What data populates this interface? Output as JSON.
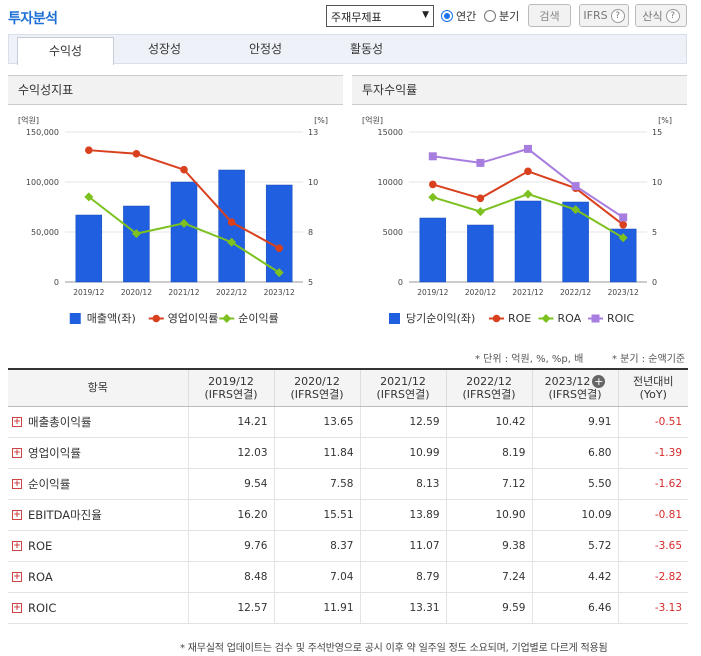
{
  "header": {
    "title": "투자분석",
    "select_value": "주재무제표",
    "radio_annual": "연간",
    "radio_quarter": "분기",
    "search_button": "검색",
    "ifrs_button": "IFRS",
    "formula_button": "산식"
  },
  "tabs": [
    "수익성",
    "성장성",
    "안정성",
    "활동성"
  ],
  "left_chart": {
    "title": "수익성지표",
    "left_unit": "[억원]",
    "right_unit": "[%]",
    "left_ticks": [
      "150,000",
      "100,000",
      "50,000",
      "0"
    ],
    "right_ticks": [
      "13",
      "10",
      "8",
      "5"
    ],
    "legend": [
      "매출액(좌)",
      "영업이익률",
      "순이익률"
    ]
  },
  "right_chart": {
    "title": "투자수익률",
    "left_unit": "[억원]",
    "right_unit": "[%]",
    "left_ticks": [
      "15000",
      "10000",
      "5000",
      "0"
    ],
    "right_ticks": [
      "15",
      "10",
      "5",
      "0"
    ],
    "legend": [
      "당기순이익(좌)",
      "ROE",
      "ROA",
      "ROIC"
    ]
  },
  "chart_data": [
    {
      "type": "bar+line",
      "title": "수익성지표",
      "categories": [
        "2019/12",
        "2020/12",
        "2021/12",
        "2022/12",
        "2023/12"
      ],
      "ylim_left": [
        0,
        150000
      ],
      "ylim_right": [
        5,
        13
      ],
      "series": [
        {
          "name": "매출액(좌)",
          "kind": "bar",
          "axis": "left",
          "color": "#1f5fe0",
          "values": [
            67000,
            76000,
            100000,
            112000,
            97000
          ]
        },
        {
          "name": "영업이익률",
          "kind": "line",
          "axis": "right",
          "color": "#d9411e",
          "values": [
            12.03,
            11.84,
            10.99,
            8.19,
            6.8
          ]
        },
        {
          "name": "순이익률",
          "kind": "line",
          "axis": "right",
          "color": "#7cc11f",
          "values": [
            9.54,
            7.58,
            8.13,
            7.12,
            5.5
          ]
        }
      ]
    },
    {
      "type": "bar+line",
      "title": "투자수익률",
      "categories": [
        "2019/12",
        "2020/12",
        "2021/12",
        "2022/12",
        "2023/12"
      ],
      "ylim_left": [
        0,
        15000
      ],
      "ylim_right": [
        0,
        15
      ],
      "series": [
        {
          "name": "당기순이익(좌)",
          "kind": "bar",
          "axis": "left",
          "color": "#1f5fe0",
          "values": [
            6400,
            5700,
            8100,
            8000,
            5300
          ]
        },
        {
          "name": "ROE",
          "kind": "line",
          "axis": "right",
          "color": "#d9411e",
          "values": [
            9.76,
            8.37,
            11.07,
            9.38,
            5.72
          ]
        },
        {
          "name": "ROA",
          "kind": "line",
          "axis": "right",
          "color": "#7cc11f",
          "values": [
            8.48,
            7.04,
            8.79,
            7.24,
            4.42
          ]
        },
        {
          "name": "ROIC",
          "kind": "line",
          "axis": "right",
          "color": "#a87de0",
          "values": [
            12.57,
            11.91,
            13.31,
            9.59,
            6.46
          ]
        }
      ]
    }
  ],
  "notes": {
    "unit": "* 단위 : 억원, %, %p, 배",
    "quarter": "* 분기 : 순액기준"
  },
  "table": {
    "header_item": "항목",
    "columns": [
      {
        "year": "2019/12",
        "sub": "(IFRS연결)"
      },
      {
        "year": "2020/12",
        "sub": "(IFRS연결)"
      },
      {
        "year": "2021/12",
        "sub": "(IFRS연결)"
      },
      {
        "year": "2022/12",
        "sub": "(IFRS연결)"
      },
      {
        "year": "2023/12",
        "sub": "(IFRS연결)"
      }
    ],
    "yoy_label": "전년대비",
    "yoy_sub": "(YoY)",
    "rows": [
      {
        "label": "매출총이익률",
        "values": [
          "14.21",
          "13.65",
          "12.59",
          "10.42",
          "9.91"
        ],
        "yoy": "-0.51"
      },
      {
        "label": "영업이익률",
        "values": [
          "12.03",
          "11.84",
          "10.99",
          "8.19",
          "6.80"
        ],
        "yoy": "-1.39"
      },
      {
        "label": "순이익률",
        "values": [
          "9.54",
          "7.58",
          "8.13",
          "7.12",
          "5.50"
        ],
        "yoy": "-1.62"
      },
      {
        "label": "EBITDA마진율",
        "values": [
          "16.20",
          "15.51",
          "13.89",
          "10.90",
          "10.09"
        ],
        "yoy": "-0.81"
      },
      {
        "label": "ROE",
        "values": [
          "9.76",
          "8.37",
          "11.07",
          "9.38",
          "5.72"
        ],
        "yoy": "-3.65"
      },
      {
        "label": "ROA",
        "values": [
          "8.48",
          "7.04",
          "8.79",
          "7.24",
          "4.42"
        ],
        "yoy": "-2.82"
      },
      {
        "label": "ROIC",
        "values": [
          "12.57",
          "11.91",
          "13.31",
          "9.59",
          "6.46"
        ],
        "yoy": "-3.13"
      }
    ]
  },
  "footer": "* 재무실적 업데이트는 검수 및 주석반영으로 공시 이후 약 일주일 정도 소요되며, 기업별로 다르게 적용됨"
}
